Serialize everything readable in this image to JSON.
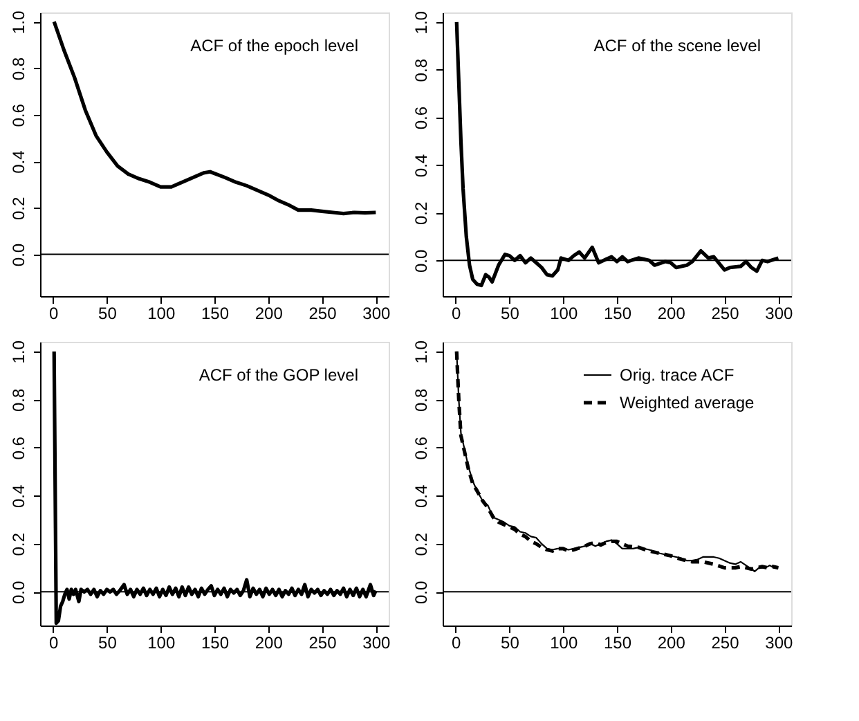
{
  "chart_data": [
    {
      "type": "line",
      "annotations": [
        "ACF of the epoch level"
      ],
      "xlim": [
        -12,
        312
      ],
      "xticks": [
        0,
        50,
        100,
        150,
        200,
        250,
        300
      ],
      "ylim": [
        -0.18,
        1.04
      ],
      "yticks": [
        {
          "value": 0,
          "label": "0.0"
        },
        {
          "value": 0.2,
          "label": "0.2"
        },
        {
          "value": 0.4,
          "label": "0.4"
        },
        {
          "value": 0.6,
          "label": "0.6"
        },
        {
          "value": 0.8,
          "label": "0.8"
        },
        {
          "value": 1,
          "label": "1.0"
        }
      ],
      "grid": false,
      "legend": false,
      "line_style": "solid",
      "ref_lines": [
        {
          "axis": "y",
          "value": 0,
          "color": "#000000"
        }
      ],
      "series": [
        {
          "color": "#000000",
          "x": [
            1,
            10,
            20,
            30,
            40,
            50,
            60,
            70,
            80,
            90,
            100,
            110,
            120,
            130,
            140,
            146,
            160,
            170,
            180,
            190,
            200,
            210,
            220,
            228,
            240,
            250,
            260,
            270,
            280,
            290,
            300
          ],
          "values": [
            1.0,
            0.88,
            0.76,
            0.62,
            0.51,
            0.44,
            0.38,
            0.345,
            0.325,
            0.31,
            0.29,
            0.29,
            0.31,
            0.33,
            0.35,
            0.355,
            0.33,
            0.31,
            0.295,
            0.275,
            0.255,
            0.23,
            0.21,
            0.19,
            0.19,
            0.185,
            0.18,
            0.175,
            0.18,
            0.178,
            0.18
          ]
        }
      ]
    },
    {
      "type": "line",
      "annotations": [
        "ACF of the scene level"
      ],
      "xlim": [
        -12,
        312
      ],
      "xticks": [
        0,
        50,
        100,
        150,
        200,
        250,
        300
      ],
      "ylim": [
        -0.15,
        1.04
      ],
      "yticks": [
        {
          "value": 0,
          "label": "0.0"
        },
        {
          "value": 0.2,
          "label": "0.2"
        },
        {
          "value": 0.4,
          "label": "0.4"
        },
        {
          "value": 0.6,
          "label": "0.6"
        },
        {
          "value": 0.8,
          "label": "0.8"
        },
        {
          "value": 1,
          "label": "1.0"
        }
      ],
      "grid": false,
      "legend": false,
      "line_style": "solid",
      "ref_lines": [
        {
          "axis": "y",
          "value": 0,
          "color": "#000000"
        }
      ],
      "series": [
        {
          "color": "#000000",
          "x": [
            1,
            3,
            5,
            7,
            10,
            13,
            16,
            20,
            24,
            28,
            31,
            34,
            40,
            46,
            50,
            55,
            60,
            65,
            70,
            75,
            80,
            85,
            90,
            95,
            98,
            105,
            110,
            115,
            120,
            127,
            133,
            140,
            145,
            150,
            155,
            160,
            170,
            180,
            185,
            195,
            200,
            205,
            215,
            220,
            228,
            235,
            240,
            250,
            255,
            265,
            270,
            275,
            280,
            285,
            290,
            300
          ],
          "values": [
            1.0,
            0.75,
            0.5,
            0.3,
            0.1,
            -0.02,
            -0.08,
            -0.1,
            -0.105,
            -0.06,
            -0.07,
            -0.09,
            -0.02,
            0.025,
            0.02,
            0.0,
            0.02,
            -0.01,
            0.01,
            -0.01,
            -0.03,
            -0.06,
            -0.065,
            -0.04,
            0.01,
            0.0,
            0.02,
            0.035,
            0.01,
            0.055,
            -0.01,
            0.005,
            0.015,
            -0.005,
            0.015,
            -0.005,
            0.01,
            0.0,
            -0.02,
            -0.005,
            -0.01,
            -0.03,
            -0.02,
            -0.005,
            0.04,
            0.01,
            0.015,
            -0.04,
            -0.03,
            -0.025,
            -0.005,
            -0.03,
            -0.045,
            0.0,
            -0.005,
            0.01
          ]
        }
      ]
    },
    {
      "type": "line",
      "annotations": [
        "ACF of the GOP level"
      ],
      "xlim": [
        -12,
        312
      ],
      "xticks": [
        0,
        50,
        100,
        150,
        200,
        250,
        300
      ],
      "ylim": [
        -0.14,
        1.04
      ],
      "yticks": [
        {
          "value": 0,
          "label": "0.0"
        },
        {
          "value": 0.2,
          "label": "0.2"
        },
        {
          "value": 0.4,
          "label": "0.4"
        },
        {
          "value": 0.6,
          "label": "0.6"
        },
        {
          "value": 0.8,
          "label": "0.8"
        },
        {
          "value": 1,
          "label": "1.0"
        }
      ],
      "grid": false,
      "legend": false,
      "line_style": "solid",
      "ref_lines": [
        {
          "axis": "y",
          "value": 0,
          "color": "#000000"
        }
      ],
      "series": [
        {
          "color": "#000000",
          "x": [
            1,
            3,
            5,
            7,
            9,
            11,
            13,
            15,
            17,
            19,
            21,
            24,
            26,
            29,
            32,
            35,
            38,
            41,
            44,
            47,
            50,
            53,
            56,
            59,
            62,
            66,
            69,
            72,
            75,
            78,
            81,
            84,
            87,
            90,
            93,
            96,
            99,
            102,
            105,
            108,
            111,
            114,
            117,
            120,
            123,
            126,
            129,
            132,
            135,
            138,
            141,
            144,
            147,
            150,
            153,
            156,
            159,
            162,
            165,
            168,
            171,
            174,
            177,
            180,
            183,
            186,
            189,
            192,
            195,
            198,
            201,
            204,
            207,
            210,
            213,
            216,
            219,
            222,
            225,
            228,
            231,
            234,
            237,
            240,
            243,
            246,
            249,
            252,
            255,
            258,
            261,
            264,
            267,
            270,
            273,
            276,
            279,
            282,
            285,
            288,
            291,
            295,
            298,
            300
          ],
          "values": [
            1.0,
            -0.13,
            -0.12,
            -0.06,
            -0.04,
            -0.01,
            0.01,
            -0.03,
            0.01,
            -0.01,
            0.01,
            -0.04,
            0.01,
            0.0,
            0.01,
            -0.01,
            0.01,
            -0.02,
            0.005,
            -0.01,
            0.01,
            0.0,
            0.01,
            -0.01,
            0.005,
            0.03,
            -0.01,
            0.01,
            -0.02,
            0.01,
            -0.01,
            0.015,
            -0.015,
            0.01,
            -0.01,
            0.015,
            -0.02,
            0.01,
            -0.015,
            0.02,
            -0.01,
            0.015,
            -0.02,
            0.02,
            -0.015,
            0.02,
            -0.01,
            0.01,
            -0.02,
            0.015,
            -0.01,
            0.01,
            0.025,
            -0.015,
            0.01,
            -0.01,
            0.015,
            -0.02,
            0.01,
            -0.005,
            0.01,
            -0.015,
            0.005,
            0.05,
            -0.02,
            0.015,
            -0.01,
            0.01,
            -0.02,
            0.015,
            -0.01,
            0.01,
            -0.015,
            0.01,
            -0.02,
            0.005,
            -0.01,
            0.015,
            -0.015,
            0.01,
            -0.01,
            0.03,
            -0.02,
            0.01,
            -0.005,
            0.01,
            -0.015,
            0.005,
            -0.01,
            0.01,
            -0.015,
            0.005,
            -0.01,
            0.015,
            -0.02,
            0.01,
            -0.015,
            0.015,
            -0.02,
            0.01,
            -0.02,
            0.03,
            -0.015,
            0.005
          ]
        }
      ]
    },
    {
      "type": "line",
      "xlim": [
        -12,
        312
      ],
      "xticks": [
        0,
        50,
        100,
        150,
        200,
        250,
        300
      ],
      "ylim": [
        -0.14,
        1.04
      ],
      "yticks": [
        {
          "value": 0,
          "label": "0.0"
        },
        {
          "value": 0.2,
          "label": "0.2"
        },
        {
          "value": 0.4,
          "label": "0.4"
        },
        {
          "value": 0.6,
          "label": "0.6"
        },
        {
          "value": 0.8,
          "label": "0.8"
        },
        {
          "value": 1,
          "label": "1.0"
        }
      ],
      "grid": false,
      "legend": "top right",
      "ref_lines": [
        {
          "axis": "y",
          "value": 0,
          "color": "#000000"
        }
      ],
      "series": [
        {
          "name": "Orig. trace ACF",
          "color": "#000000",
          "line_style": "solid",
          "x": [
            1,
            3,
            5,
            8,
            12,
            16,
            20,
            25,
            30,
            35,
            40,
            45,
            50,
            55,
            60,
            65,
            70,
            75,
            80,
            85,
            90,
            95,
            100,
            105,
            110,
            115,
            120,
            125,
            130,
            135,
            140,
            145,
            150,
            155,
            160,
            165,
            170,
            175,
            180,
            190,
            200,
            210,
            215,
            220,
            225,
            230,
            240,
            245,
            250,
            255,
            260,
            265,
            270,
            275,
            278,
            282,
            288,
            292,
            296,
            300
          ],
          "values": [
            1.0,
            0.8,
            0.66,
            0.6,
            0.52,
            0.46,
            0.42,
            0.38,
            0.36,
            0.31,
            0.3,
            0.29,
            0.275,
            0.27,
            0.25,
            0.245,
            0.23,
            0.225,
            0.2,
            0.18,
            0.175,
            0.18,
            0.18,
            0.175,
            0.18,
            0.185,
            0.19,
            0.2,
            0.19,
            0.2,
            0.21,
            0.215,
            0.2,
            0.18,
            0.18,
            0.18,
            0.185,
            0.18,
            0.175,
            0.16,
            0.15,
            0.14,
            0.13,
            0.13,
            0.135,
            0.145,
            0.145,
            0.14,
            0.13,
            0.12,
            0.115,
            0.125,
            0.11,
            0.095,
            0.085,
            0.1,
            0.1,
            0.11,
            0.1,
            0.1
          ]
        },
        {
          "name": "Weighted average",
          "color": "#000000",
          "line_style": "dashed",
          "x": [
            1,
            3,
            5,
            8,
            12,
            16,
            20,
            25,
            30,
            35,
            40,
            45,
            50,
            55,
            60,
            65,
            70,
            75,
            80,
            85,
            90,
            95,
            100,
            105,
            110,
            120,
            125,
            130,
            135,
            140,
            145,
            150,
            155,
            160,
            170,
            180,
            190,
            200,
            210,
            220,
            230,
            240,
            250,
            260,
            265,
            275,
            280,
            285,
            290,
            295,
            300
          ],
          "values": [
            1.0,
            0.8,
            0.65,
            0.59,
            0.51,
            0.45,
            0.42,
            0.38,
            0.35,
            0.31,
            0.29,
            0.28,
            0.27,
            0.26,
            0.24,
            0.23,
            0.21,
            0.2,
            0.185,
            0.175,
            0.17,
            0.18,
            0.18,
            0.17,
            0.175,
            0.19,
            0.2,
            0.205,
            0.195,
            0.205,
            0.21,
            0.21,
            0.2,
            0.19,
            0.185,
            0.17,
            0.16,
            0.15,
            0.135,
            0.125,
            0.125,
            0.115,
            0.1,
            0.1,
            0.105,
            0.095,
            0.1,
            0.105,
            0.1,
            0.105,
            0.1
          ]
        }
      ]
    }
  ]
}
